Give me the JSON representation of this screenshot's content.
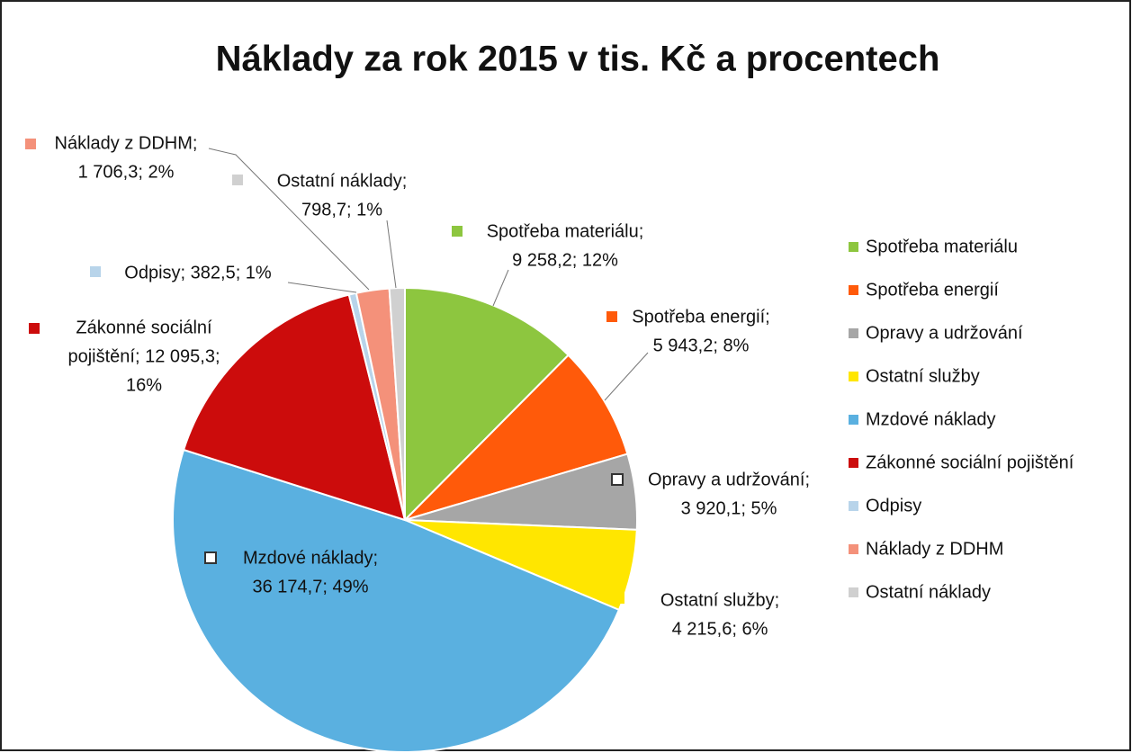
{
  "chart_data": {
    "type": "pie",
    "title": "Náklady za rok 2015 v tis. Kč a procentech",
    "categories": [
      "Spotřeba materiálu",
      "Spotřeba energií",
      "Opravy a udržování",
      "Ostatní služby",
      "Mzdové náklady",
      "Zákonné sociální pojištění",
      "Odpisy",
      "Náklady z DDHM",
      "Ostatní náklady"
    ],
    "values": [
      9258.2,
      5943.2,
      3920.1,
      4215.6,
      36174.7,
      12095.3,
      382.5,
      1706.3,
      798.7
    ],
    "value_labels": [
      [
        "Spotřeba materiálu;",
        "9 258,2; 12%"
      ],
      [
        "Spotřeba energií;",
        "5 943,2; 8%"
      ],
      [
        "Opravy a udržování;",
        "3 920,1; 5%"
      ],
      [
        "Ostatní služby;",
        "4 215,6; 6%"
      ],
      [
        "Mzdové náklady;",
        "36 174,7; 49%"
      ],
      [
        "Zákonné sociální",
        "pojištění; 12 095,3;",
        "16%"
      ],
      [
        "Odpisy; 382,5; 1%"
      ],
      [
        "Náklady z DDHM;",
        "1 706,3; 2%"
      ],
      [
        "Ostatní náklady;",
        "798,7; 1%"
      ]
    ],
    "colors": [
      "#8dc63f",
      "#ff5a0a",
      "#a6a6a6",
      "#ffe600",
      "#5ab0e0",
      "#cc0c0c",
      "#b8d4ea",
      "#f4917a",
      "#d0d0d0"
    ],
    "legend": "right"
  }
}
